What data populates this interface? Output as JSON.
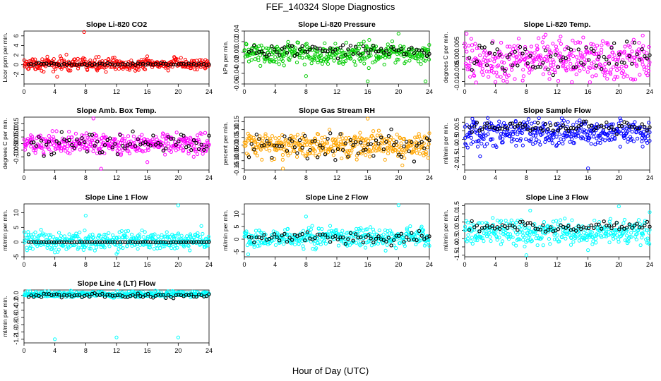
{
  "figure": {
    "title": "FEF_140324  Slope Diagnostics",
    "xlabel": "Hour of Day (UTC)"
  },
  "colors": {
    "red": "#ff0000",
    "green": "#00cc00",
    "magenta": "#ff00ff",
    "orange": "#ffa500",
    "blue": "#0000ff",
    "cyan": "#00ffff",
    "black": "#000000"
  },
  "chart_data": [
    {
      "type": "scatter",
      "title": "Slope Li-820 CO2",
      "ylabel": "Licor ppm per min.",
      "xlim": [
        0,
        24
      ],
      "ylim": [
        -4,
        7
      ],
      "xticks": [
        "0",
        "4",
        "8",
        "12",
        "16",
        "20",
        "24"
      ],
      "yticks": [
        "-2",
        "0",
        "2",
        "4",
        "6"
      ],
      "color": "red",
      "series": [
        {
          "name": "all",
          "center": 0.1,
          "spread": 0.6,
          "outliers": [
            [
              7.8,
              6.8
            ],
            [
              4.3,
              -2.5
            ],
            [
              5.5,
              2.1
            ],
            [
              9.5,
              -1.2
            ]
          ]
        },
        {
          "name": "hourly",
          "center": 0.1,
          "spread": 0.15
        }
      ]
    },
    {
      "type": "scatter",
      "title": "Slope Li-820 Pressure",
      "ylabel": "kPa per min.",
      "xlim": [
        0,
        24
      ],
      "ylim": [
        -0.06,
        0.04
      ],
      "xticks": [
        "0",
        "4",
        "8",
        "12",
        "16",
        "20",
        "24"
      ],
      "yticks": [
        "-0.06",
        "-0.04",
        "-0.02",
        "0.00",
        "0.02",
        "0.04"
      ],
      "color": "green",
      "series": [
        {
          "name": "all",
          "center": -0.002,
          "spread": 0.01,
          "outliers": [
            [
              20,
              0.035
            ],
            [
              8,
              -0.045
            ],
            [
              16,
              -0.055
            ],
            [
              23.5,
              -0.055
            ],
            [
              15.5,
              0.02
            ]
          ]
        },
        {
          "name": "hourly",
          "center": 0.002,
          "spread": 0.005
        }
      ]
    },
    {
      "type": "scatter",
      "title": "Slope Li-820 Temp.",
      "ylabel": "degrees C per min.",
      "xlim": [
        0,
        24
      ],
      "ylim": [
        -0.011,
        0.0105
      ],
      "xticks": [
        "0",
        "4",
        "8",
        "12",
        "16",
        "20",
        "24"
      ],
      "yticks": [
        "-0.010",
        "-0.005",
        "0.000",
        "0.005"
      ],
      "color": "magenta",
      "series": [
        {
          "name": "all",
          "center": -0.001,
          "spread": 0.004,
          "outliers": [
            [
              10.5,
              0.009
            ],
            [
              11,
              -0.009
            ],
            [
              6.5,
              -0.009
            ]
          ]
        },
        {
          "name": "hourly",
          "center": 0.0,
          "spread": 0.003
        }
      ]
    },
    {
      "type": "scatter",
      "title": "Slope Amb. Box Temp.",
      "ylabel": "degrees C per min.",
      "xlim": [
        0,
        24
      ],
      "ylim": [
        -0.2,
        0.2
      ],
      "xticks": [
        "0",
        "4",
        "8",
        "12",
        "16",
        "20",
        "24"
      ],
      "yticks": [
        "-0.10",
        "-0.05",
        "0.00",
        "0.05",
        "0.10",
        "0.15"
      ],
      "color": "magenta",
      "series": [
        {
          "name": "all",
          "center": 0.0,
          "spread": 0.04,
          "outliers": [
            [
              9,
              0.19
            ],
            [
              10,
              -0.19
            ],
            [
              16,
              -0.14
            ]
          ]
        },
        {
          "name": "hourly",
          "center": 0.0,
          "spread": 0.04
        }
      ]
    },
    {
      "type": "scatter",
      "title": "Slope Gas Stream RH",
      "ylabel": "percent per min.",
      "xlim": [
        0,
        24
      ],
      "ylim": [
        -0.16,
        0.18
      ],
      "xticks": [
        "0",
        "4",
        "8",
        "12",
        "16",
        "20",
        "24"
      ],
      "yticks": [
        "-0.15",
        "-0.10",
        "-0.05",
        "0.00",
        "0.05",
        "0.10",
        "0.15"
      ],
      "color": "orange",
      "series": [
        {
          "name": "all",
          "center": 0.0,
          "spread": 0.04,
          "outliers": [
            [
              16,
              0.17
            ],
            [
              5,
              -0.15
            ],
            [
              20.5,
              -0.13
            ]
          ]
        },
        {
          "name": "hourly",
          "center": 0.0,
          "spread": 0.04
        }
      ]
    },
    {
      "type": "scatter",
      "title": "Slope Sample Flow",
      "ylabel": "ml/min per min.",
      "xlim": [
        0,
        24
      ],
      "ylim": [
        -2.3,
        0.8
      ],
      "xticks": [
        "0",
        "4",
        "8",
        "12",
        "16",
        "20",
        "24"
      ],
      "yticks": [
        "-2.0",
        "-1.5",
        "-1.0",
        "-0.5",
        "0.0",
        "0.5"
      ],
      "color": "blue",
      "series": [
        {
          "name": "all",
          "center": -0.1,
          "spread": 0.35,
          "outliers": [
            [
              16,
              -2.2
            ],
            [
              1,
              0.7
            ],
            [
              2,
              -1.5
            ]
          ]
        },
        {
          "name": "hourly",
          "center": 0.2,
          "spread": 0.15
        }
      ]
    },
    {
      "type": "scatter",
      "title": "Slope Line 1 Flow",
      "ylabel": "ml/min per min.",
      "xlim": [
        0,
        24
      ],
      "ylim": [
        -5,
        13
      ],
      "xticks": [
        "0",
        "4",
        "8",
        "12",
        "16",
        "20",
        "24"
      ],
      "yticks": [
        "-5",
        "0",
        "5",
        "10"
      ],
      "color": "cyan",
      "series": [
        {
          "name": "all",
          "center": 0.3,
          "spread": 1.5,
          "outliers": [
            [
              20,
              12.5
            ],
            [
              8,
              9
            ],
            [
              23,
              5.5
            ],
            [
              12,
              -4
            ],
            [
              4,
              -3.5
            ]
          ]
        },
        {
          "name": "hourly",
          "center": 0.0,
          "spread": 0.05
        }
      ]
    },
    {
      "type": "scatter",
      "title": "Slope Line 2 Flow",
      "ylabel": "ml/min per min.",
      "xlim": [
        0,
        24
      ],
      "ylim": [
        -7,
        14
      ],
      "xticks": [
        "0",
        "4",
        "8",
        "12",
        "16",
        "20",
        "24"
      ],
      "yticks": [
        "-5",
        "0",
        "5",
        "10"
      ],
      "color": "cyan",
      "series": [
        {
          "name": "all",
          "center": 0.5,
          "spread": 1.8,
          "outliers": [
            [
              20,
              13.5
            ],
            [
              8,
              9
            ],
            [
              23,
              5
            ],
            [
              0.5,
              -6
            ]
          ]
        },
        {
          "name": "hourly",
          "center": 0.5,
          "spread": 1.2
        }
      ]
    },
    {
      "type": "scatter",
      "title": "Slope Line 3 Flow",
      "ylabel": "ml/min per min.",
      "xlim": [
        0,
        24
      ],
      "ylim": [
        -1.6,
        1.6
      ],
      "xticks": [
        "0",
        "4",
        "8",
        "12",
        "16",
        "20",
        "24"
      ],
      "yticks": [
        "-1.5",
        "-1.0",
        "-0.5",
        "0.0",
        "0.5",
        "1.0",
        "1.5"
      ],
      "color": "cyan",
      "series": [
        {
          "name": "all",
          "center": -0.1,
          "spread": 0.35,
          "outliers": [
            [
              8.5,
              1.2
            ],
            [
              20,
              1.45
            ],
            [
              24,
              1.1
            ],
            [
              16,
              -1.2
            ],
            [
              8,
              -1.5
            ]
          ]
        },
        {
          "name": "hourly",
          "center": 0.25,
          "spread": 0.15
        }
      ]
    },
    {
      "type": "scatter",
      "title": "Slope Line 4 (LT) Flow",
      "ylabel": "ml/min per min.",
      "xlim": [
        0,
        24
      ],
      "ylim": [
        -1.3,
        0.15
      ],
      "xticks": [
        "0",
        "4",
        "8",
        "12",
        "16",
        "20",
        "24"
      ],
      "yticks": [
        "-1.2",
        "-1.0",
        "-0.8",
        "-0.6",
        "-0.4",
        "-0.2",
        "0.0"
      ],
      "color": "cyan",
      "series": [
        {
          "name": "all",
          "center": 0.03,
          "spread": 0.04,
          "outliers": [
            [
              4,
              -1.2
            ],
            [
              12,
              -1.15
            ],
            [
              20,
              -1.15
            ]
          ]
        },
        {
          "name": "hourly",
          "center": 0.0,
          "spread": 0.03
        }
      ]
    }
  ]
}
